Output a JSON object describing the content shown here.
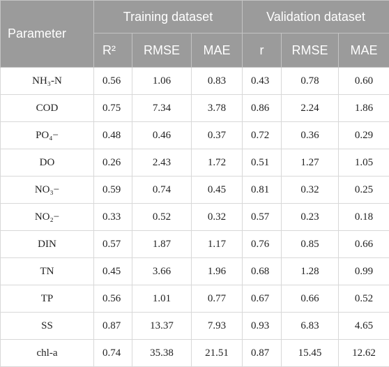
{
  "header": {
    "parameter": "Parameter",
    "training": "Training dataset",
    "validation": "Validation dataset",
    "training_cols": [
      "R²",
      "RMSE",
      "MAE"
    ],
    "validation_cols": [
      "r",
      "RMSE",
      "MAE"
    ]
  },
  "rows": [
    {
      "name": "NH₃-N",
      "train": [
        "0.56",
        "1.06",
        "0.83"
      ],
      "valid": [
        "0.43",
        "0.78",
        "0.60"
      ]
    },
    {
      "name": "COD",
      "train": [
        "0.75",
        "7.34",
        "3.78"
      ],
      "valid": [
        "0.86",
        "2.24",
        "1.86"
      ]
    },
    {
      "name": "PO₄−",
      "train": [
        "0.48",
        "0.46",
        "0.37"
      ],
      "valid": [
        "0.72",
        "0.36",
        "0.29"
      ]
    },
    {
      "name": "DO",
      "train": [
        "0.26",
        "2.43",
        "1.72"
      ],
      "valid": [
        "0.51",
        "1.27",
        "1.05"
      ]
    },
    {
      "name": "NO₃−",
      "train": [
        "0.59",
        "0.74",
        "0.45"
      ],
      "valid": [
        "0.81",
        "0.32",
        "0.25"
      ]
    },
    {
      "name": "NO₂−",
      "train": [
        "0.33",
        "0.52",
        "0.32"
      ],
      "valid": [
        "0.57",
        "0.23",
        "0.18"
      ]
    },
    {
      "name": "DIN",
      "train": [
        "0.57",
        "1.87",
        "1.17"
      ],
      "valid": [
        "0.76",
        "0.85",
        "0.66"
      ]
    },
    {
      "name": "TN",
      "train": [
        "0.45",
        "3.66",
        "1.96"
      ],
      "valid": [
        "0.68",
        "1.28",
        "0.99"
      ]
    },
    {
      "name": "TP",
      "train": [
        "0.56",
        "1.01",
        "0.77"
      ],
      "valid": [
        "0.67",
        "0.66",
        "0.52"
      ]
    },
    {
      "name": "SS",
      "train": [
        "0.87",
        "13.37",
        "7.93"
      ],
      "valid": [
        "0.93",
        "6.83",
        "4.65"
      ]
    },
    {
      "name": "chl-a",
      "train": [
        "0.74",
        "35.38",
        "21.51"
      ],
      "valid": [
        "0.87",
        "15.45",
        "12.62"
      ]
    }
  ]
}
